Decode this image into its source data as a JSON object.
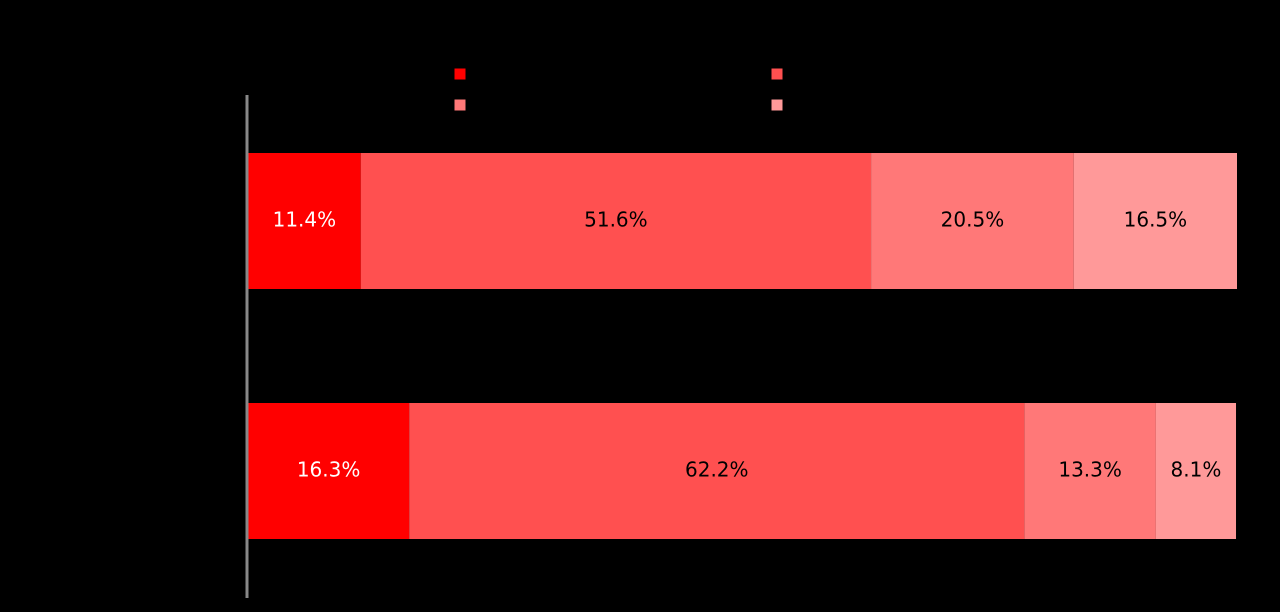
{
  "chart_data": {
    "type": "stacked-bar",
    "categories": [
      null,
      null
    ],
    "xlim": [
      0,
      100
    ],
    "series": [
      {
        "color": "#ff0000",
        "label_color": "#ffffff",
        "values": [
          11.4,
          16.3
        ],
        "value_labels": [
          "11.4%",
          "16.3%"
        ]
      },
      {
        "color": "#ff5050",
        "label_color": "#000000",
        "values": [
          51.6,
          62.2
        ],
        "value_labels": [
          "51.6%",
          "62.2%"
        ]
      },
      {
        "color": "#ff7878",
        "label_color": "#000000",
        "values": [
          20.5,
          13.3
        ],
        "value_labels": [
          "20.5%",
          "13.3%"
        ]
      },
      {
        "color": "#ff9999",
        "label_color": "#000000",
        "values": [
          16.5,
          8.1
        ],
        "value_labels": [
          "16.5%",
          "8.1%"
        ]
      }
    ]
  }
}
